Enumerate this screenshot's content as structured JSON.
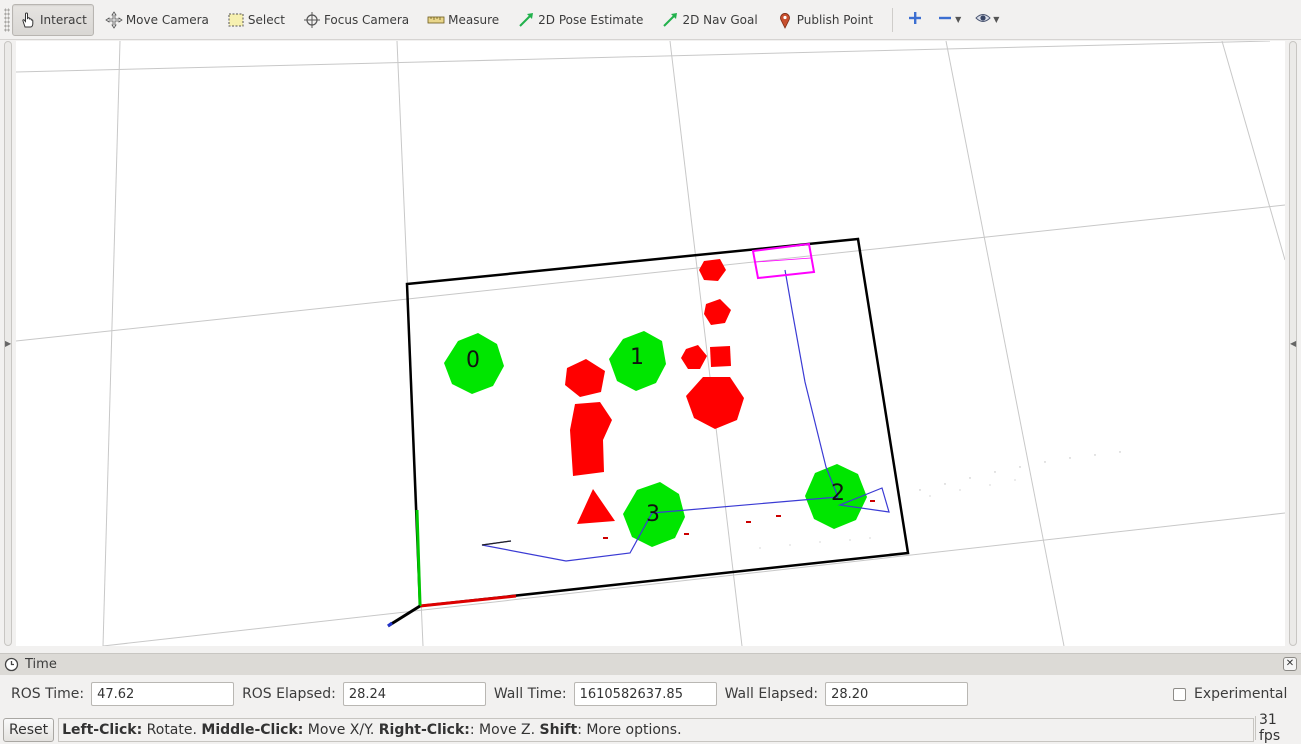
{
  "toolbar": {
    "tools": [
      {
        "label": "Interact",
        "icon": "hand-pointer-icon",
        "active": true
      },
      {
        "label": "Move Camera",
        "icon": "move-camera-icon",
        "active": false
      },
      {
        "label": "Select",
        "icon": "select-box-icon",
        "active": false
      },
      {
        "label": "Focus Camera",
        "icon": "focus-crosshair-icon",
        "active": false
      },
      {
        "label": "Measure",
        "icon": "ruler-icon",
        "active": false
      },
      {
        "label": "2D Pose Estimate",
        "icon": "green-arrow-icon",
        "active": false
      },
      {
        "label": "2D Nav Goal",
        "icon": "green-arrow-icon",
        "active": false
      },
      {
        "label": "Publish Point",
        "icon": "map-pin-icon",
        "active": false
      }
    ],
    "extra": [
      "add-tool-icon",
      "remove-tool-icon",
      "view-eye-icon"
    ]
  },
  "viewport": {
    "labels": [
      "0",
      "1",
      "2",
      "3"
    ],
    "colors": {
      "obstacle": "#ff0000",
      "waypoint": "#00e600",
      "path": "#3b3bd4",
      "goal": "#ff00ff",
      "border": "#000000"
    }
  },
  "time_panel": {
    "title": "Time",
    "ros_time_label": "ROS Time:",
    "ros_time_value": "47.62",
    "ros_elapsed_label": "ROS Elapsed:",
    "ros_elapsed_value": "28.24",
    "wall_time_label": "Wall Time:",
    "wall_time_value": "1610582637.85",
    "wall_elapsed_label": "Wall Elapsed:",
    "wall_elapsed_value": "28.20",
    "experimental_label": "Experimental"
  },
  "status": {
    "reset_label": "Reset",
    "hint_parts": [
      {
        "bold": "Left-Click:",
        "text": " Rotate. "
      },
      {
        "bold": "Middle-Click:",
        "text": " Move X/Y. "
      },
      {
        "bold": "Right-Click:",
        "text": ": Move Z. "
      },
      {
        "bold": "Shift",
        "text": ": More options."
      }
    ],
    "fps": "31 fps"
  }
}
